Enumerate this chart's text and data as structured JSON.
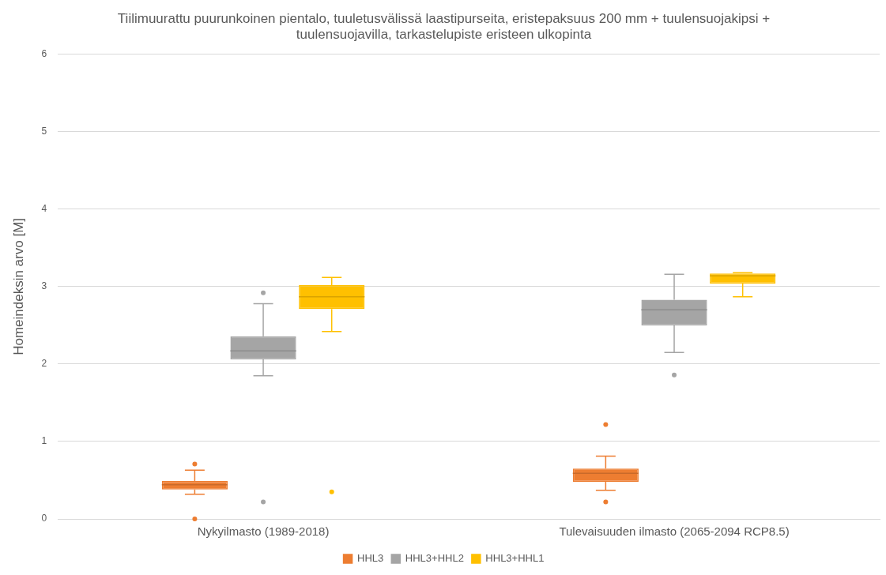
{
  "chart_data": {
    "type": "box",
    "title": [
      "Tiilimuurattu puurunkoinen pientalo, tuuletusvälissä laastipurseita, eristepaksuus 200 mm + tuulensuojakipsi +",
      "tuulensuojavilla, tarkastelupiste eristeen ulkopinta"
    ],
    "ylabel": "Homeindeksin arvo [M]",
    "categories": [
      "Nykyilmasto (1989-2018)",
      "Tulevaisuuden ilmasto (2065-2094 RCP8.5)"
    ],
    "series": [
      {
        "name": "HHL3",
        "color": "#ed7d31",
        "boxes": [
          {
            "low": 0.32,
            "q1": 0.38,
            "median": 0.44,
            "q3": 0.49,
            "high": 0.63,
            "outliers": [
              0.71,
              0.0
            ]
          },
          {
            "low": 0.37,
            "q1": 0.48,
            "median": 0.59,
            "q3": 0.65,
            "high": 0.81,
            "outliers": [
              1.22,
              0.22
            ]
          }
        ]
      },
      {
        "name": "HHL3+HHL2",
        "color": "#a5a5a5",
        "boxes": [
          {
            "low": 1.85,
            "q1": 2.06,
            "median": 2.17,
            "q3": 2.36,
            "high": 2.78,
            "outliers": [
              2.92,
              0.22
            ]
          },
          {
            "low": 2.15,
            "q1": 2.5,
            "median": 2.7,
            "q3": 2.83,
            "high": 3.16,
            "outliers": [
              1.86
            ]
          }
        ]
      },
      {
        "name": "HHL3+HHL1",
        "color": "#ffc000",
        "boxes": [
          {
            "low": 2.42,
            "q1": 2.71,
            "median": 2.87,
            "q3": 3.02,
            "high": 3.12,
            "outliers": [
              0.35
            ]
          },
          {
            "low": 2.87,
            "q1": 3.04,
            "median": 3.14,
            "q3": 3.17,
            "high": 3.18
          }
        ]
      }
    ],
    "ylim": [
      0,
      6
    ],
    "yticks": [
      0,
      1,
      2,
      3,
      4,
      5,
      6
    ],
    "grid": "y",
    "legend": "bottom"
  }
}
